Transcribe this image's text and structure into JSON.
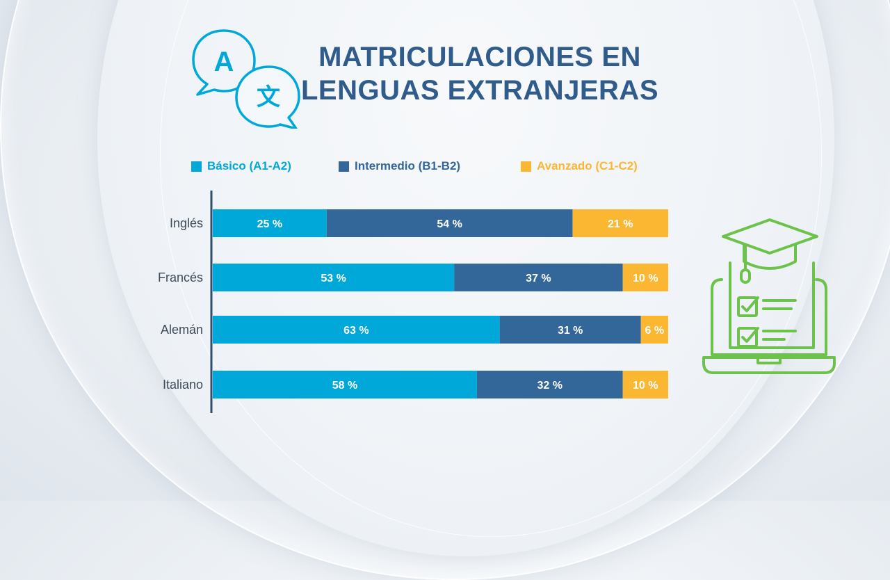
{
  "title": {
    "line1": "MATRICULACIONES EN",
    "line2": "LENGUAS EXTRANJERAS"
  },
  "icons": {
    "translate": "translate-icon",
    "education": "graduation-laptop-icon"
  },
  "colors": {
    "basico": "#00a8d9",
    "intermedio": "#336699",
    "avanzado": "#fbb632",
    "title": "#2f5c8a",
    "axis": "#2f4f6f",
    "category_text": "#3d4a57",
    "accent_green": "#6cc24a"
  },
  "chart_data": {
    "type": "bar",
    "orientation": "horizontal",
    "stacked": true,
    "title": "MATRICULACIONES EN LENGUAS EXTRANJERAS",
    "categories": [
      "Inglés",
      "Francés",
      "Alemán",
      "Italiano"
    ],
    "series": [
      {
        "name": "Básico (A1-A2)",
        "values": [
          25,
          53,
          63,
          58
        ],
        "color": "#00a8d9"
      },
      {
        "name": "Intermedio (B1-B2)",
        "values": [
          54,
          37,
          31,
          32
        ],
        "color": "#336699"
      },
      {
        "name": "Avanzado (C1-C2)",
        "values": [
          21,
          10,
          6,
          10
        ],
        "color": "#fbb632"
      }
    ],
    "value_suffix": " %",
    "xlim": [
      0,
      100
    ],
    "xlabel": "",
    "ylabel": "",
    "grid": false,
    "legend_position": "top"
  }
}
